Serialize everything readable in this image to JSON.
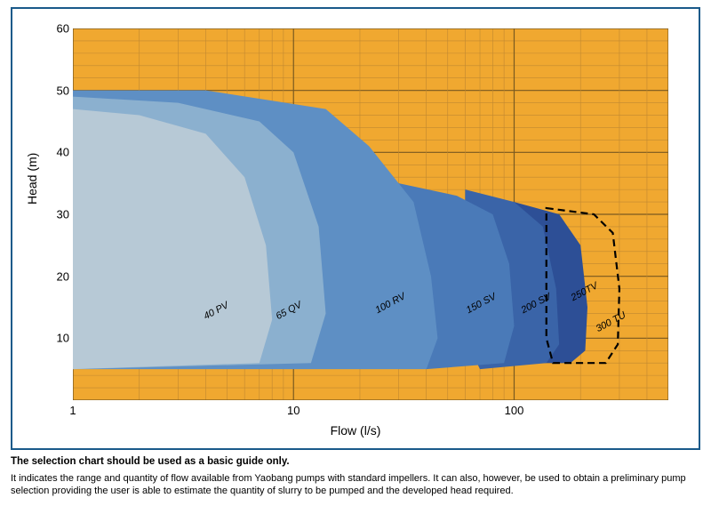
{
  "chart": {
    "type": "area-envelope-logx",
    "frame_border_color": "#1a5a8a",
    "background_color": "#ffffff",
    "plot_background_color": "#f0a830",
    "grid_color_major": "#7a5a20",
    "grid_color_minor": "#c08830",
    "xaxis": {
      "label": "Flow (l/s)",
      "scale": "log",
      "xlim": [
        1,
        500
      ],
      "ticks": [
        1,
        10,
        100
      ],
      "label_fontsize": 14,
      "tick_fontsize": 13
    },
    "yaxis": {
      "label": "Head (m)",
      "scale": "linear",
      "ylim": [
        0,
        60
      ],
      "ticks": [
        10,
        20,
        30,
        40,
        50,
        60
      ],
      "gridlines_minor_step": 2,
      "label_fontsize": 14,
      "tick_fontsize": 13
    },
    "envelopes": [
      {
        "name": "40 PV",
        "fill": "#b7c9d6",
        "points": [
          [
            1,
            47
          ],
          [
            2,
            46
          ],
          [
            4,
            43
          ],
          [
            6,
            36
          ],
          [
            7.5,
            25
          ],
          [
            8,
            13
          ],
          [
            7,
            6
          ],
          [
            1,
            5
          ]
        ]
      },
      {
        "name": "65 QV",
        "fill": "#8bb0cf",
        "points": [
          [
            1,
            49
          ],
          [
            3,
            48
          ],
          [
            7,
            45
          ],
          [
            10,
            40
          ],
          [
            13,
            28
          ],
          [
            14,
            14
          ],
          [
            12,
            6
          ],
          [
            1,
            5
          ]
        ]
      },
      {
        "name": "100 RV",
        "fill": "#5e8fc4",
        "points": [
          [
            1,
            50
          ],
          [
            4,
            50
          ],
          [
            14,
            47
          ],
          [
            22,
            41
          ],
          [
            35,
            32
          ],
          [
            42,
            20
          ],
          [
            45,
            10
          ],
          [
            40,
            5
          ],
          [
            1,
            5
          ]
        ]
      },
      {
        "name": "150 SV",
        "fill": "#4a7ab8",
        "points": [
          [
            30,
            35
          ],
          [
            55,
            33
          ],
          [
            80,
            30
          ],
          [
            95,
            22
          ],
          [
            100,
            12
          ],
          [
            90,
            6
          ],
          [
            40,
            5
          ],
          [
            30,
            10
          ]
        ]
      },
      {
        "name": "200 SV",
        "fill": "#3a64a8",
        "points": [
          [
            60,
            34
          ],
          [
            100,
            32
          ],
          [
            135,
            28
          ],
          [
            155,
            18
          ],
          [
            160,
            9
          ],
          [
            140,
            6
          ],
          [
            70,
            5
          ],
          [
            60,
            10
          ]
        ]
      },
      {
        "name": "250TV",
        "fill": "#2d4f96",
        "points": [
          [
            100,
            32
          ],
          [
            160,
            30
          ],
          [
            200,
            25
          ],
          [
            215,
            15
          ],
          [
            210,
            8
          ],
          [
            180,
            6
          ],
          [
            110,
            6
          ],
          [
            100,
            10
          ]
        ]
      }
    ],
    "dashed_region": {
      "name": "300 TU",
      "stroke": "#000000",
      "dash": "8,5",
      "stroke_width": 2.2,
      "points": [
        [
          140,
          31
        ],
        [
          230,
          30
        ],
        [
          280,
          27
        ],
        [
          300,
          18
        ],
        [
          295,
          9
        ],
        [
          260,
          6
        ],
        [
          150,
          6
        ],
        [
          140,
          10
        ]
      ]
    },
    "series_labels": [
      {
        "text": "40 PV",
        "x": 4.0,
        "y": 13,
        "rotate": -28
      },
      {
        "text": "65 QV",
        "x": 8.5,
        "y": 13,
        "rotate": -28
      },
      {
        "text": "100 RV",
        "x": 24,
        "y": 14,
        "rotate": -28
      },
      {
        "text": "150 SV",
        "x": 62,
        "y": 14,
        "rotate": -28
      },
      {
        "text": "200 SV",
        "x": 110,
        "y": 14,
        "rotate": -28
      },
      {
        "text": "250TV",
        "x": 185,
        "y": 16,
        "rotate": -28
      },
      {
        "text": "300 TU",
        "x": 240,
        "y": 11,
        "rotate": -28
      }
    ],
    "label_fontsize": 11,
    "label_color": "#000000"
  },
  "caption": {
    "bold": "The selection chart should be used as a basic guide only.",
    "body": "It indicates the range and quantity of flow available from Yaobang pumps with standard impellers. It can also, however, be used to obtain a preliminary pump selection providing the user is able to estimate the quantity of slurry to be pumped and the developed head required."
  }
}
